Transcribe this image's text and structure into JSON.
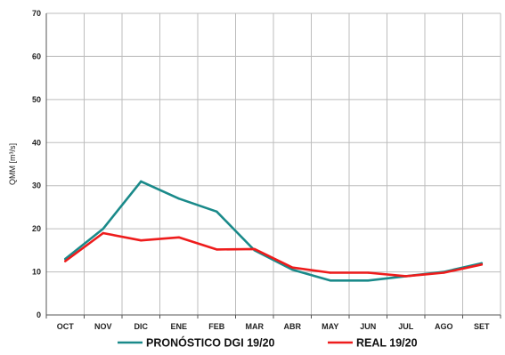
{
  "chart_data": {
    "type": "line",
    "categories": [
      "OCT",
      "NOV",
      "DIC",
      "ENE",
      "FEB",
      "MAR",
      "ABR",
      "MAY",
      "JUN",
      "JUL",
      "AGO",
      "SET"
    ],
    "ylabel": "QMM [m³/s]",
    "ylim": [
      0,
      70
    ],
    "yticks": [
      "0",
      "10",
      "20",
      "30",
      "40",
      "50",
      "60",
      "70"
    ],
    "grid": true,
    "legend_position": "bottom",
    "series": [
      {
        "name": "PRONÓSTICO DGI 19/20",
        "color": "#1a8a8a",
        "values": [
          13,
          20,
          31,
          27,
          24,
          15,
          10.5,
          8,
          8,
          9,
          10,
          12
        ]
      },
      {
        "name": "REAL 19/20",
        "color": "#ee1c1c",
        "values": [
          12.5,
          19,
          17.3,
          18,
          15.2,
          15.3,
          11,
          9.8,
          9.8,
          9,
          9.8,
          11.7
        ]
      }
    ]
  }
}
